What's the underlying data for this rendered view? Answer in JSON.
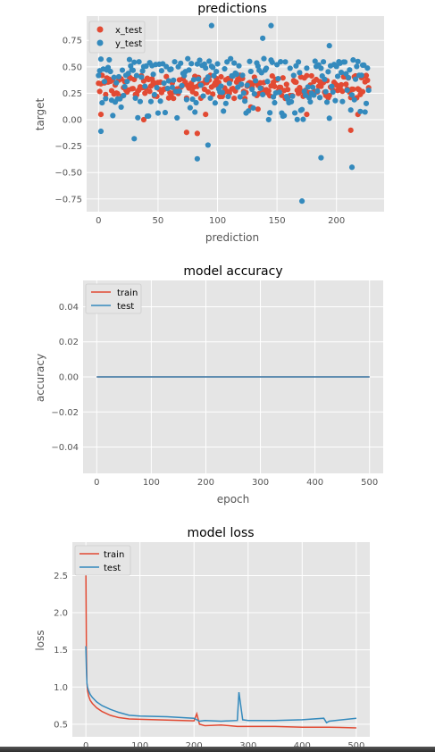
{
  "colors": {
    "red": "#E24A33",
    "blue": "#348ABD",
    "panel": "#E5E5E5",
    "grid": "#ffffff"
  },
  "chart_data": [
    {
      "type": "scatter",
      "title": "predictions",
      "xlabel": "prediction",
      "ylabel": "target",
      "xlim": [
        -10,
        240
      ],
      "ylim": [
        -0.87,
        0.98
      ],
      "xticks": [
        0,
        50,
        100,
        150,
        200
      ],
      "yticks": [
        -0.75,
        -0.5,
        -0.25,
        0.0,
        0.25,
        0.5,
        0.75
      ],
      "ytick_labels": [
        "−0.75",
        "−0.50",
        "−0.25",
        "0.00",
        "0.25",
        "0.50",
        "0.75"
      ],
      "legend": "top-left",
      "grid": true,
      "series": [
        {
          "name": "x_test",
          "n_points": 228,
          "typical_range": [
            0.2,
            0.42
          ],
          "outliers": [
            [
              2,
              0.05
            ],
            [
              38,
              0.0
            ],
            [
              74,
              -0.12
            ],
            [
              83,
              -0.13
            ],
            [
              90,
              0.05
            ],
            [
              128,
              0.12
            ],
            [
              134,
              0.1
            ],
            [
              175,
              0.05
            ],
            [
              212,
              -0.1
            ],
            [
              218,
              0.05
            ]
          ]
        },
        {
          "name": "y_test",
          "n_points": 228,
          "typical_range": [
            0.15,
            0.55
          ],
          "outliers": [
            [
              95,
              0.89
            ],
            [
              145,
              0.89
            ],
            [
              138,
              0.77
            ],
            [
              171,
              -0.77
            ],
            [
              83,
              -0.37
            ],
            [
              92,
              -0.24
            ],
            [
              213,
              -0.45
            ],
            [
              194,
              0.7
            ],
            [
              30,
              -0.18
            ],
            [
              2,
              -0.11
            ],
            [
              187,
              -0.36
            ]
          ]
        }
      ]
    },
    {
      "type": "line",
      "title": "model accuracy",
      "xlabel": "epoch",
      "ylabel": "accuracy",
      "xlim": [
        -25,
        525
      ],
      "ylim": [
        -0.055,
        0.055
      ],
      "xticks": [
        0,
        100,
        200,
        300,
        400,
        500
      ],
      "yticks": [
        -0.04,
        -0.02,
        0.0,
        0.02,
        0.04
      ],
      "ytick_labels": [
        "−0.04",
        "−0.02",
        "0.00",
        "0.02",
        "0.04"
      ],
      "legend": "top-left",
      "grid": true,
      "series": [
        {
          "name": "train",
          "x": [
            0,
            500
          ],
          "y": [
            0,
            0
          ]
        },
        {
          "name": "test",
          "x": [
            0,
            500
          ],
          "y": [
            0,
            0
          ]
        }
      ]
    },
    {
      "type": "line",
      "title": "model loss",
      "xlabel": "",
      "ylabel": "loss",
      "xlim": [
        -25,
        525
      ],
      "ylim": [
        0.33,
        2.95
      ],
      "xticks": [
        0,
        100,
        200,
        300,
        400,
        500
      ],
      "yticks": [
        0.5,
        1.0,
        1.5,
        2.0,
        2.5
      ],
      "ytick_labels": [
        "0.5",
        "1.0",
        "1.5",
        "2.0",
        "2.5"
      ],
      "legend": "top-left",
      "grid": true,
      "series": [
        {
          "name": "train",
          "x": [
            0,
            1,
            2,
            3,
            5,
            8,
            12,
            20,
            30,
            45,
            60,
            80,
            100,
            150,
            200,
            205,
            210,
            220,
            250,
            280,
            300,
            350,
            400,
            450,
            500
          ],
          "y": [
            2.7,
            1.5,
            1.05,
            0.95,
            0.88,
            0.82,
            0.78,
            0.72,
            0.67,
            0.62,
            0.59,
            0.57,
            0.565,
            0.555,
            0.545,
            0.64,
            0.5,
            0.48,
            0.49,
            0.47,
            0.47,
            0.47,
            0.46,
            0.46,
            0.45
          ]
        },
        {
          "name": "test",
          "x": [
            0,
            1,
            2,
            3,
            5,
            8,
            12,
            20,
            30,
            45,
            60,
            80,
            100,
            150,
            200,
            205,
            210,
            220,
            250,
            280,
            283,
            290,
            300,
            350,
            400,
            440,
            445,
            450,
            500
          ],
          "y": [
            1.55,
            1.25,
            1.05,
            1.0,
            0.95,
            0.9,
            0.86,
            0.8,
            0.75,
            0.7,
            0.66,
            0.62,
            0.61,
            0.6,
            0.58,
            0.56,
            0.54,
            0.55,
            0.54,
            0.55,
            0.93,
            0.56,
            0.55,
            0.55,
            0.56,
            0.58,
            0.52,
            0.54,
            0.58
          ]
        }
      ]
    }
  ]
}
